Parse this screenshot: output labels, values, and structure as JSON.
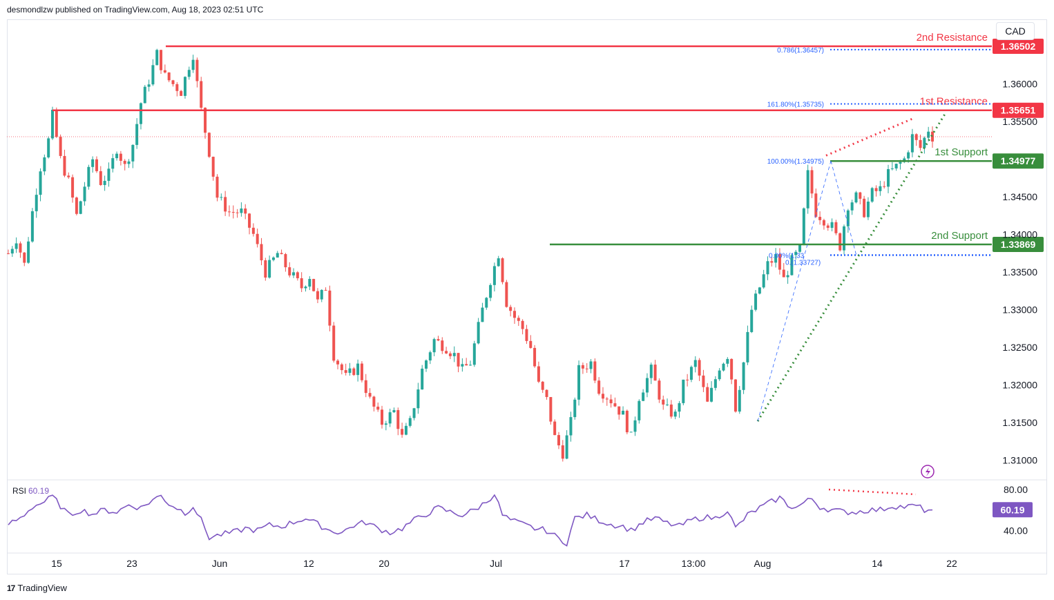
{
  "header": {
    "published": "desmondlzw published on TradingView.com, Aug 18, 2023 02:51 UTC"
  },
  "currency": "CAD",
  "footer": {
    "brand": "TradingView"
  },
  "colors": {
    "up": "#26a69a",
    "down": "#ef5350",
    "resistance": "#f23645",
    "support": "#388e3c",
    "fib": "#2962ff",
    "rsi": "#7e57c2"
  },
  "chart_data": {
    "type": "candlestick",
    "price_axis": {
      "ylim": [
        1.3075,
        1.3685
      ],
      "ticks": [
        "1.36000",
        "1.35500",
        "1.34500",
        "1.34000",
        "1.33500",
        "1.33000",
        "1.32500",
        "1.32000",
        "1.31500",
        "1.31000"
      ]
    },
    "x_tick_labels": [
      "15",
      "23",
      "Jun",
      "12",
      "20",
      "Jul",
      "17",
      "13:00",
      "Aug",
      "14",
      "22"
    ],
    "close_path": [
      [
        0,
        1.3375
      ],
      [
        2,
        1.3395
      ],
      [
        4,
        1.336
      ],
      [
        6,
        1.343
      ],
      [
        8,
        1.349
      ],
      [
        10,
        1.3525
      ],
      [
        11,
        1.3558
      ],
      [
        13,
        1.35
      ],
      [
        15,
        1.347
      ],
      [
        17,
        1.3425
      ],
      [
        19,
        1.3465
      ],
      [
        21,
        1.35
      ],
      [
        23,
        1.347
      ],
      [
        25,
        1.348
      ],
      [
        27,
        1.3515
      ],
      [
        29,
        1.349
      ],
      [
        31,
        1.352
      ],
      [
        33,
        1.3575
      ],
      [
        35,
        1.3605
      ],
      [
        37,
        1.364
      ],
      [
        39,
        1.361
      ],
      [
        41,
        1.36
      ],
      [
        43,
        1.359
      ],
      [
        45,
        1.3625
      ],
      [
        46,
        1.364
      ],
      [
        47,
        1.36
      ],
      [
        48,
        1.3565
      ],
      [
        50,
        1.351
      ],
      [
        52,
        1.345
      ],
      [
        55,
        1.343
      ],
      [
        58,
        1.343
      ],
      [
        61,
        1.34
      ],
      [
        64,
        1.335
      ],
      [
        67,
        1.3375
      ],
      [
        70,
        1.335
      ],
      [
        73,
        1.333
      ],
      [
        75,
        1.3345
      ],
      [
        77,
        1.331
      ],
      [
        79,
        1.333
      ],
      [
        81,
        1.324
      ],
      [
        84,
        1.321
      ],
      [
        87,
        1.3225
      ],
      [
        90,
        1.318
      ],
      [
        93,
        1.315
      ],
      [
        96,
        1.3165
      ],
      [
        98,
        1.313
      ],
      [
        100,
        1.315
      ],
      [
        103,
        1.322
      ],
      [
        106,
        1.326
      ],
      [
        109,
        1.325
      ],
      [
        111,
        1.324
      ],
      [
        113,
        1.322
      ],
      [
        115,
        1.323
      ],
      [
        118,
        1.33
      ],
      [
        120,
        1.334
      ],
      [
        122,
        1.3375
      ],
      [
        124,
        1.331
      ],
      [
        126,
        1.329
      ],
      [
        128,
        1.3275
      ],
      [
        130,
        1.325
      ],
      [
        132,
        1.32
      ],
      [
        134,
        1.318
      ],
      [
        136,
        1.313
      ],
      [
        138,
        1.311
      ],
      [
        140,
        1.315
      ],
      [
        142,
        1.322
      ],
      [
        145,
        1.323
      ],
      [
        147,
        1.3195
      ],
      [
        150,
        1.318
      ],
      [
        153,
        1.316
      ],
      [
        155,
        1.313
      ],
      [
        157,
        1.3185
      ],
      [
        160,
        1.322
      ],
      [
        163,
        1.317
      ],
      [
        166,
        1.316
      ],
      [
        168,
        1.32
      ],
      [
        171,
        1.323
      ],
      [
        174,
        1.3175
      ],
      [
        177,
        1.3225
      ],
      [
        179,
        1.324
      ],
      [
        180,
        1.321
      ],
      [
        181,
        1.317
      ],
      [
        183,
        1.323
      ],
      [
        185,
        1.33
      ],
      [
        187,
        1.333
      ],
      [
        189,
        1.336
      ],
      [
        191,
        1.337
      ],
      [
        193,
        1.334
      ],
      [
        195,
        1.3365
      ],
      [
        197,
        1.338
      ],
      [
        199,
        1.348
      ],
      [
        201,
        1.343
      ],
      [
        203,
        1.342
      ],
      [
        205,
        1.341
      ],
      [
        207,
        1.3385
      ],
      [
        209,
        1.344
      ],
      [
        211,
        1.345
      ],
      [
        213,
        1.343
      ],
      [
        215,
        1.3455
      ],
      [
        217,
        1.346
      ],
      [
        219,
        1.348
      ],
      [
        221,
        1.349
      ],
      [
        223,
        1.35
      ],
      [
        225,
        1.353
      ],
      [
        227,
        1.3515
      ],
      [
        229,
        1.354
      ],
      [
        230,
        1.353
      ]
    ],
    "horizontal_levels": [
      {
        "name": "2nd Resistance",
        "value": 1.36502,
        "label": "1.36502"
      },
      {
        "name": "1st Resistance",
        "value": 1.35651,
        "label": "1.35651"
      },
      {
        "name": "1st Support",
        "value": 1.34977,
        "label": "1.34977"
      },
      {
        "name": "2nd Support",
        "value": 1.33869,
        "label": "1.33869"
      }
    ],
    "level_texts": {
      "r2": "2nd Resistance",
      "r1": "1st Resistance",
      "s1": "1st Support",
      "s2": "2nd Support"
    },
    "fib_labels": {
      "f786": "0.786(1.36457)",
      "f1618": "161.80%(1.35735)",
      "f100": "100.00%(1.34975)",
      "f0": "0.00%(1.33",
      "f0b": "0.(1.33727)"
    },
    "current_price_dotted": 1.353,
    "rsi": {
      "label": "RSI",
      "value": "60.19",
      "ticks": [
        "80.00",
        "40.00"
      ],
      "ylim": [
        24,
        88
      ],
      "path": [
        [
          0,
          46
        ],
        [
          3,
          52
        ],
        [
          6,
          63
        ],
        [
          9,
          68
        ],
        [
          11,
          73
        ],
        [
          13,
          64
        ],
        [
          15,
          55
        ],
        [
          18,
          60
        ],
        [
          21,
          56
        ],
        [
          24,
          60
        ],
        [
          27,
          58
        ],
        [
          30,
          65
        ],
        [
          33,
          62
        ],
        [
          36,
          70
        ],
        [
          38,
          74
        ],
        [
          40,
          66
        ],
        [
          42,
          62
        ],
        [
          44,
          57
        ],
        [
          46,
          64
        ],
        [
          48,
          50
        ],
        [
          50,
          33
        ],
        [
          53,
          36
        ],
        [
          56,
          38
        ],
        [
          59,
          42
        ],
        [
          62,
          40
        ],
        [
          65,
          45
        ],
        [
          68,
          44
        ],
        [
          71,
          48
        ],
        [
          74,
          52
        ],
        [
          77,
          46
        ],
        [
          80,
          40
        ],
        [
          83,
          38
        ],
        [
          86,
          45
        ],
        [
          89,
          48
        ],
        [
          92,
          42
        ],
        [
          95,
          38
        ],
        [
          98,
          42
        ],
        [
          101,
          50
        ],
        [
          104,
          56
        ],
        [
          107,
          62
        ],
        [
          110,
          58
        ],
        [
          113,
          55
        ],
        [
          116,
          60
        ],
        [
          119,
          68
        ],
        [
          121,
          76
        ],
        [
          123,
          55
        ],
        [
          125,
          50
        ],
        [
          128,
          46
        ],
        [
          131,
          42
        ],
        [
          134,
          40
        ],
        [
          137,
          32
        ],
        [
          139,
          28
        ],
        [
          141,
          52
        ],
        [
          144,
          55
        ],
        [
          147,
          50
        ],
        [
          150,
          46
        ],
        [
          153,
          44
        ],
        [
          155,
          40
        ],
        [
          158,
          48
        ],
        [
          161,
          52
        ],
        [
          164,
          47
        ],
        [
          167,
          44
        ],
        [
          170,
          50
        ],
        [
          173,
          53
        ],
        [
          176,
          52
        ],
        [
          179,
          60
        ],
        [
          181,
          42
        ],
        [
          184,
          55
        ],
        [
          187,
          62
        ],
        [
          190,
          68
        ],
        [
          192,
          72
        ],
        [
          194,
          65
        ],
        [
          196,
          62
        ],
        [
          198,
          67
        ],
        [
          200,
          71
        ],
        [
          202,
          63
        ],
        [
          205,
          60
        ],
        [
          208,
          58
        ],
        [
          211,
          58
        ],
        [
          214,
          60
        ],
        [
          217,
          60
        ],
        [
          220,
          64
        ],
        [
          223,
          63
        ],
        [
          226,
          64
        ],
        [
          228,
          60
        ],
        [
          230,
          60
        ]
      ]
    }
  }
}
